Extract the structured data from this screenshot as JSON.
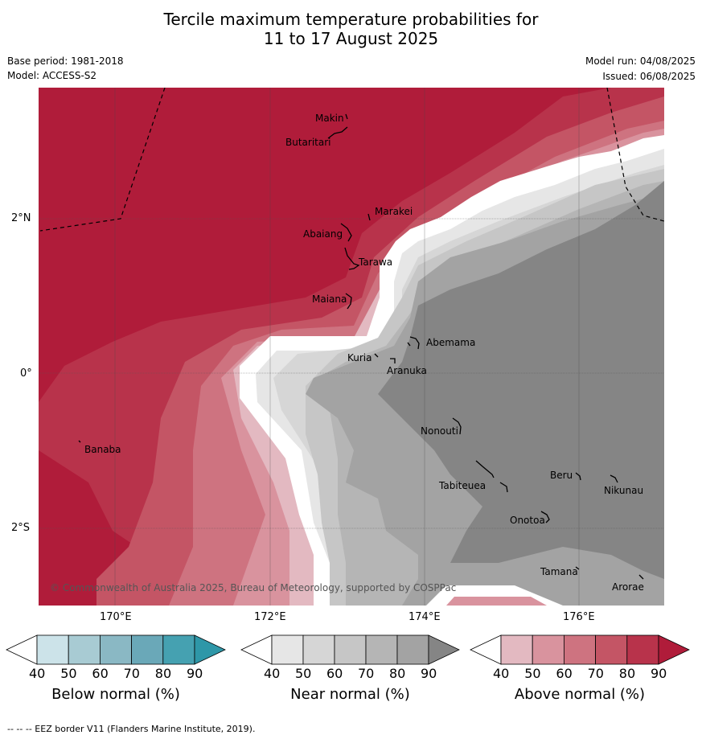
{
  "title_line1": "Tercile maximum temperature probabilities for",
  "title_line2": "11 to 17 August 2025",
  "base_period": "Base period: 1981-2018",
  "model": "Model: ACCESS-S2",
  "model_run": "Model run: 04/08/2025",
  "issued": "Issued: 06/08/2025",
  "copyright": "© Commonwealth of Australia 2025, Bureau of Meteorology, supported by COSPPac",
  "lat_labels": [
    "2°N",
    "0°",
    "2°S"
  ],
  "lon_labels": [
    "170°E",
    "172°E",
    "174°E",
    "176°E"
  ],
  "places": [
    "Makin",
    "Butaritari",
    "Marakei",
    "Abaiang",
    "Tarawa",
    "Maiana",
    "Abemama",
    "Kuria",
    "Aranuka",
    "Banaba",
    "Nonouti",
    "Beru",
    "Nikunau",
    "Tabiteuea",
    "Onotoa",
    "Tamana",
    "Arorae"
  ],
  "colorbars": [
    {
      "title": "Below normal (%)",
      "ticks": [
        "40",
        "50",
        "60",
        "70",
        "80",
        "90"
      ],
      "colors": [
        "#ffffff",
        "#cce3e9",
        "#a8cbd3",
        "#8ab8c4",
        "#6aa8b8",
        "#45a1b1",
        "#2e97a8"
      ]
    },
    {
      "title": "Near normal (%)",
      "ticks": [
        "40",
        "50",
        "60",
        "70",
        "80",
        "90"
      ],
      "colors": [
        "#ffffff",
        "#e6e6e6",
        "#d6d6d6",
        "#c6c6c6",
        "#b5b5b5",
        "#a3a3a3",
        "#858585"
      ]
    },
    {
      "title": "Above normal (%)",
      "ticks": [
        "40",
        "50",
        "60",
        "70",
        "80",
        "90"
      ],
      "colors": [
        "#ffffff",
        "#e3b9c1",
        "#d9939e",
        "#ce7380",
        "#c45565",
        "#b8334b",
        "#b01c3a"
      ]
    }
  ],
  "footnote": "--  --  -- EEZ border V11 (Flanders Marine Institute, 2019)."
}
